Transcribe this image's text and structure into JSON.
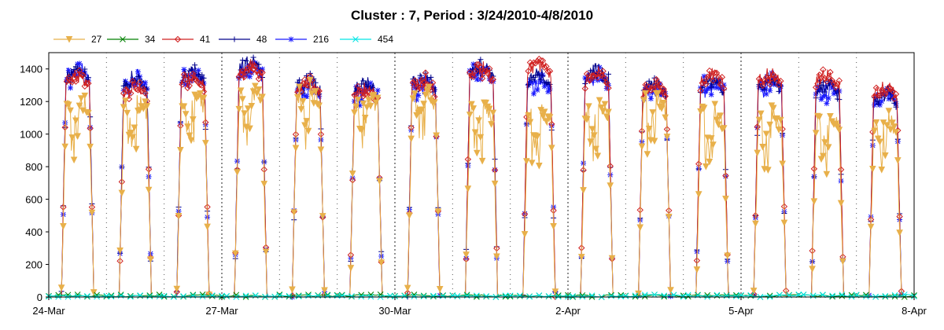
{
  "chart_data": {
    "type": "line",
    "title": "Cluster : 7, Period : 3/24/2010-4/8/2010",
    "xlabel": "",
    "ylabel": "",
    "ylim": [
      0,
      1500
    ],
    "xlim": [
      "2010-03-24",
      "2010-04-08"
    ],
    "x_tick_labels": [
      "24-Mar",
      "27-Mar",
      "30-Mar",
      "2-Apr",
      "5-Apr",
      "8-Apr"
    ],
    "y_ticks": [
      0,
      200,
      400,
      600,
      800,
      1000,
      1200,
      1400
    ],
    "legend": {
      "placement": "top-left"
    },
    "daily_peaks": {
      "x": [
        "3/24",
        "3/25",
        "3/26",
        "3/27",
        "3/28",
        "3/29",
        "3/30",
        "3/31",
        "4/1",
        "4/2",
        "4/3",
        "4/4",
        "4/5",
        "4/6",
        "4/7"
      ],
      "series": [
        {
          "name": "27",
          "color": "#e8b04a",
          "marker": "triangle-down",
          "values": [
            1250,
            1230,
            1270,
            1300,
            1300,
            1280,
            1300,
            1200,
            1180,
            1200,
            1250,
            1170,
            1150,
            1130,
            1120
          ]
        },
        {
          "name": "34",
          "color": "#008000",
          "marker": "x",
          "values": [
            15,
            15,
            15,
            15,
            15,
            15,
            15,
            15,
            15,
            15,
            15,
            15,
            15,
            15,
            15
          ]
        },
        {
          "name": "41",
          "color": "#d02020",
          "marker": "diamond",
          "values": [
            1400,
            1340,
            1400,
            1460,
            1360,
            1320,
            1370,
            1450,
            1480,
            1420,
            1340,
            1410,
            1410,
            1400,
            1330
          ]
        },
        {
          "name": "48",
          "color": "#00008b",
          "marker": "plus",
          "values": [
            1440,
            1380,
            1420,
            1480,
            1370,
            1350,
            1390,
            1460,
            1400,
            1440,
            1350,
            1380,
            1380,
            1350,
            1300
          ]
        },
        {
          "name": "216",
          "color": "#1a1aff",
          "marker": "star",
          "values": [
            1450,
            1400,
            1430,
            1470,
            1350,
            1330,
            1380,
            1460,
            1390,
            1420,
            1330,
            1370,
            1380,
            1340,
            1290
          ]
        },
        {
          "name": "454",
          "color": "#00e5e5",
          "marker": "x",
          "values": [
            10,
            10,
            10,
            10,
            10,
            10,
            10,
            10,
            10,
            10,
            15,
            15,
            15,
            15,
            15
          ]
        }
      ]
    }
  }
}
